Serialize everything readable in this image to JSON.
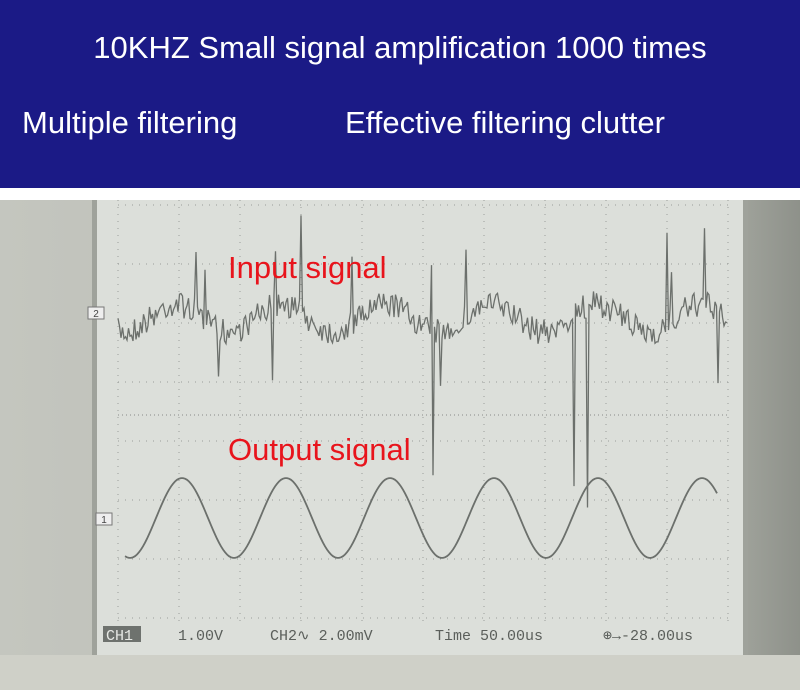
{
  "header": {
    "title": "10KHZ Small signal amplification 1000 times",
    "features": [
      "Multiple filtering",
      "Effective filtering clutter"
    ]
  },
  "scope": {
    "annotations": {
      "input": "Input signal",
      "output": "Output signal"
    },
    "channel_markers": [
      "2",
      "1"
    ],
    "status": {
      "ch1": "CH1",
      "ch1_scale": "1.00V",
      "ch2": "CH2∿ 2.00mV",
      "time": "Time 50.00us",
      "trigger": "⊕→-28.00us"
    }
  }
}
